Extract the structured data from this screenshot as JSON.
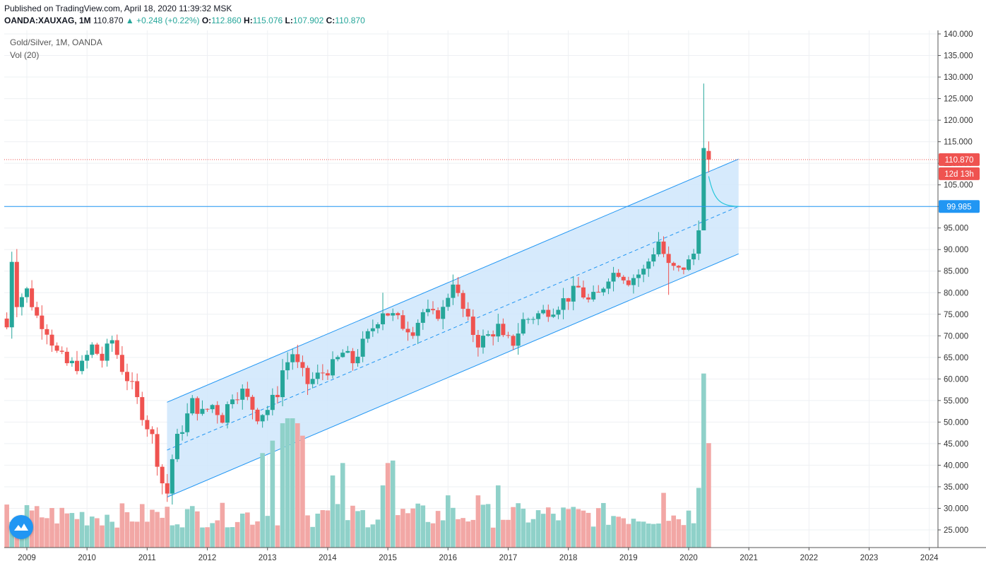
{
  "header": {
    "published": "Published on TradingView.com, April 18, 2020 11:39:32 MSK",
    "symbol": "OANDA:XAUXAG, 1M",
    "last": "110.870",
    "change_arrow": "▲",
    "change": "+0.248 (+0.22%)",
    "o_label": "O:",
    "o": "112.860",
    "h_label": "H:",
    "h": "115.076",
    "l_label": "L:",
    "l": "107.902",
    "c_label": "C:",
    "c": "110.870"
  },
  "legend": {
    "main": "Gold/Silver, 1M, OANDA",
    "volume": "Vol (20)"
  },
  "colors": {
    "up": "#26a69a",
    "down": "#ef5350",
    "vol_up": "#8fd1c9",
    "vol_down": "#f2a7a5",
    "channel": "#2196f3",
    "channel_fill": "#cfe6fb",
    "price_line": "#ef5350",
    "hline": "#2196f3",
    "grid": "#eef0f3"
  },
  "icons": {
    "logo": "tradingview-cloud-icon"
  },
  "chart_data": {
    "type": "candlestick",
    "price_axis": {
      "min": 20,
      "max": 142,
      "ticks": [
        "140.000",
        "135.000",
        "130.000",
        "125.000",
        "120.000",
        "115.000",
        "110.000",
        "105.000",
        "100.000",
        "95.000",
        "90.000",
        "85.000",
        "80.000",
        "75.000",
        "70.000",
        "65.000",
        "60.000",
        "55.000",
        "50.000",
        "45.000",
        "40.000",
        "35.000",
        "30.000",
        "25.000"
      ],
      "tick_values": [
        140,
        135,
        130,
        125,
        120,
        115,
        110,
        105,
        100,
        95,
        90,
        85,
        80,
        75,
        70,
        65,
        60,
        55,
        50,
        45,
        40,
        35,
        30,
        25
      ]
    },
    "time_axis": {
      "labels": [
        "2009",
        "2010",
        "2011",
        "2012",
        "2013",
        "2014",
        "2015",
        "2016",
        "2017",
        "2018",
        "2019",
        "2020",
        "2021",
        "2022",
        "2023",
        "2024"
      ],
      "label_years": [
        2009,
        2010,
        2011,
        2012,
        2013,
        2014,
        2015,
        2016,
        2017,
        2018,
        2019,
        2020,
        2021,
        2022,
        2023,
        2024
      ],
      "start": 2008.667,
      "end": 2024.2
    },
    "last_price": {
      "value": 110.87,
      "label": "110.870",
      "countdown": "12d 13h"
    },
    "horizontal_line": {
      "value": 99.985,
      "label": "99.985"
    },
    "channel": {
      "start_time": 2011.33,
      "end_time": 2020.83,
      "upper_start": 54.6,
      "upper_end": 111.0,
      "mid_start": 43.5,
      "mid_end": 100.0,
      "lower_start": 32.6,
      "lower_end": 89.0
    },
    "anchors": [
      [
        2008.667,
        72.0
      ],
      [
        2008.75,
        88.0
      ],
      [
        2008.833,
        78.0
      ],
      [
        2009.0,
        80.5
      ],
      [
        2009.167,
        74.5
      ],
      [
        2009.333,
        71.5
      ],
      [
        2009.5,
        66.0
      ],
      [
        2009.667,
        63.5
      ],
      [
        2009.917,
        63.0
      ],
      [
        2010.083,
        67.5
      ],
      [
        2010.25,
        64.5
      ],
      [
        2010.417,
        69.0
      ],
      [
        2010.583,
        62.5
      ],
      [
        2010.75,
        58.0
      ],
      [
        2010.917,
        52.0
      ],
      [
        2011.083,
        46.5
      ],
      [
        2011.25,
        36.0
      ],
      [
        2011.333,
        33.5
      ],
      [
        2011.417,
        41.5
      ],
      [
        2011.5,
        46.0
      ],
      [
        2011.667,
        51.5
      ],
      [
        2011.75,
        54.5
      ],
      [
        2011.917,
        52.0
      ],
      [
        2012.083,
        54.0
      ],
      [
        2012.25,
        51.0
      ],
      [
        2012.417,
        56.5
      ],
      [
        2012.583,
        57.0
      ],
      [
        2012.833,
        51.5
      ],
      [
        2013.0,
        53.0
      ],
      [
        2013.167,
        57.0
      ],
      [
        2013.25,
        62.0
      ],
      [
        2013.417,
        66.0
      ],
      [
        2013.5,
        63.0
      ],
      [
        2013.667,
        59.0
      ],
      [
        2013.917,
        61.5
      ],
      [
        2014.083,
        63.0
      ],
      [
        2014.25,
        66.0
      ],
      [
        2014.417,
        64.0
      ],
      [
        2014.583,
        68.0
      ],
      [
        2014.75,
        72.0
      ],
      [
        2014.917,
        76.0
      ],
      [
        2015.083,
        74.5
      ],
      [
        2015.25,
        72.5
      ],
      [
        2015.417,
        71.5
      ],
      [
        2015.583,
        75.5
      ],
      [
        2015.75,
        74.5
      ],
      [
        2015.917,
        76.0
      ],
      [
        2016.083,
        83.0
      ],
      [
        2016.167,
        79.0
      ],
      [
        2016.333,
        73.0
      ],
      [
        2016.5,
        68.5
      ],
      [
        2016.667,
        70.0
      ],
      [
        2016.833,
        72.0
      ],
      [
        2016.917,
        69.0
      ],
      [
        2017.083,
        68.5
      ],
      [
        2017.25,
        73.5
      ],
      [
        2017.5,
        75.0
      ],
      [
        2017.75,
        76.5
      ],
      [
        2018.0,
        79.0
      ],
      [
        2018.167,
        81.0
      ],
      [
        2018.333,
        78.0
      ],
      [
        2018.5,
        79.5
      ],
      [
        2018.667,
        84.0
      ],
      [
        2018.833,
        85.0
      ],
      [
        2019.0,
        83.0
      ],
      [
        2019.25,
        85.0
      ],
      [
        2019.5,
        92.0
      ],
      [
        2019.667,
        86.0
      ],
      [
        2019.833,
        85.0
      ],
      [
        2020.0,
        87.0
      ],
      [
        2020.083,
        89.0
      ],
      [
        2020.167,
        96.0
      ],
      [
        2020.25,
        112.9
      ],
      [
        2020.333,
        110.87
      ]
    ],
    "volume_axis": {
      "max": 150
    },
    "volume_spikes": [
      [
        2012.917,
        38
      ],
      [
        2013.083,
        43
      ],
      [
        2013.25,
        50
      ],
      [
        2013.333,
        52
      ],
      [
        2013.417,
        52
      ],
      [
        2013.5,
        50
      ],
      [
        2013.583,
        45
      ],
      [
        2014.083,
        29
      ],
      [
        2014.25,
        34
      ],
      [
        2014.917,
        25
      ],
      [
        2015.0,
        34
      ],
      [
        2015.083,
        35
      ],
      [
        2016.0,
        21
      ],
      [
        2016.5,
        21
      ],
      [
        2016.833,
        25
      ],
      [
        2019.583,
        22
      ],
      [
        2020.167,
        24
      ],
      [
        2020.25,
        70
      ],
      [
        2020.333,
        42
      ]
    ]
  }
}
